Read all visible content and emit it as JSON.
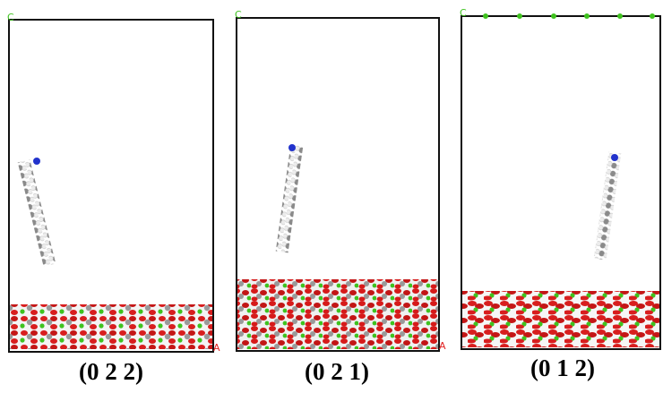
{
  "panels": [
    {
      "label": "(0 2 2)",
      "c_axis": "C",
      "a_axis": "A"
    },
    {
      "label": "(0 2 1)",
      "c_axis": "C",
      "a_axis": "A"
    },
    {
      "label": "(0 1 2)",
      "c_axis": "C"
    }
  ]
}
